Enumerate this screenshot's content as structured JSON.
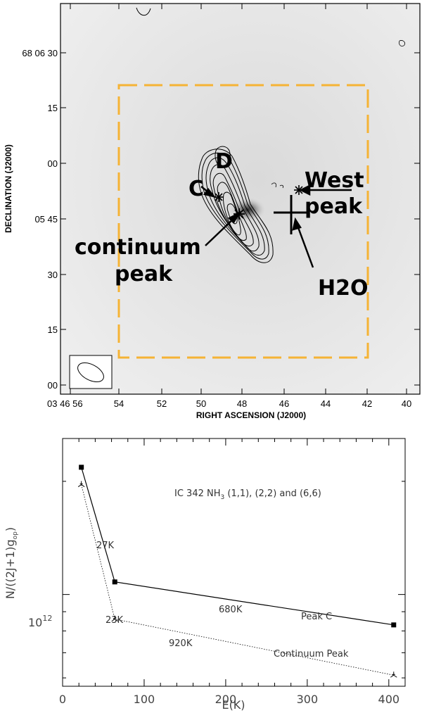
{
  "chart_data": [
    {
      "type": "contour_map",
      "xlabel": "RIGHT ASCENSION (J2000)",
      "ylabel": "DECLINATION (J2000)",
      "xticks": [
        "03 46 56",
        "54",
        "52",
        "50",
        "48",
        "46",
        "44",
        "42",
        "40"
      ],
      "yticks": [
        "68 06 30",
        "15",
        "00",
        "05 45",
        "30",
        "15",
        "00"
      ],
      "annotations": {
        "d": "D",
        "c": "C",
        "west": "West",
        "west_peak": "peak",
        "continuum": "continuum",
        "continuum_peak": "peak",
        "h2o": "H2O"
      },
      "colors": {
        "box": "#f5b335"
      }
    },
    {
      "type": "line",
      "title": "IC 342 NH$_3$ (1,1), (2,2) and (6,6)",
      "title_text": "IC 342 NH",
      "title_sub": "3",
      "title_rest": " (1,1), (2,2) and (6,6)",
      "xlabel": "E(K)",
      "ylabel_main": "N/((2J+1)g",
      "ylabel_sub": "op",
      "ylabel_close": ")",
      "xlim": [
        0,
        420
      ],
      "log_y": true,
      "ylim": [
        570000000000.0,
        2600000000000.0
      ],
      "x_ticks": [
        0,
        100,
        200,
        300,
        400
      ],
      "y_tick_label": {
        "value": 1000000000000.0,
        "base": "10",
        "exp": "12"
      },
      "series": [
        {
          "name": "Peak C",
          "marker": "square",
          "line": "solid",
          "x": [
            23,
            64,
            406
          ],
          "y": [
            2180000000000.0,
            1080000000000.0,
            830000000000.0
          ]
        },
        {
          "name": "Continuum Peak",
          "marker": "triangle",
          "line": "dotted",
          "x": [
            23,
            64,
            406
          ],
          "y": [
            1960000000000.0,
            860000000000.0,
            610000000000.0
          ]
        }
      ],
      "temp_labels": {
        "27k": "27K",
        "23k": "23K",
        "680k": "680K",
        "920k": "920K"
      }
    }
  ]
}
